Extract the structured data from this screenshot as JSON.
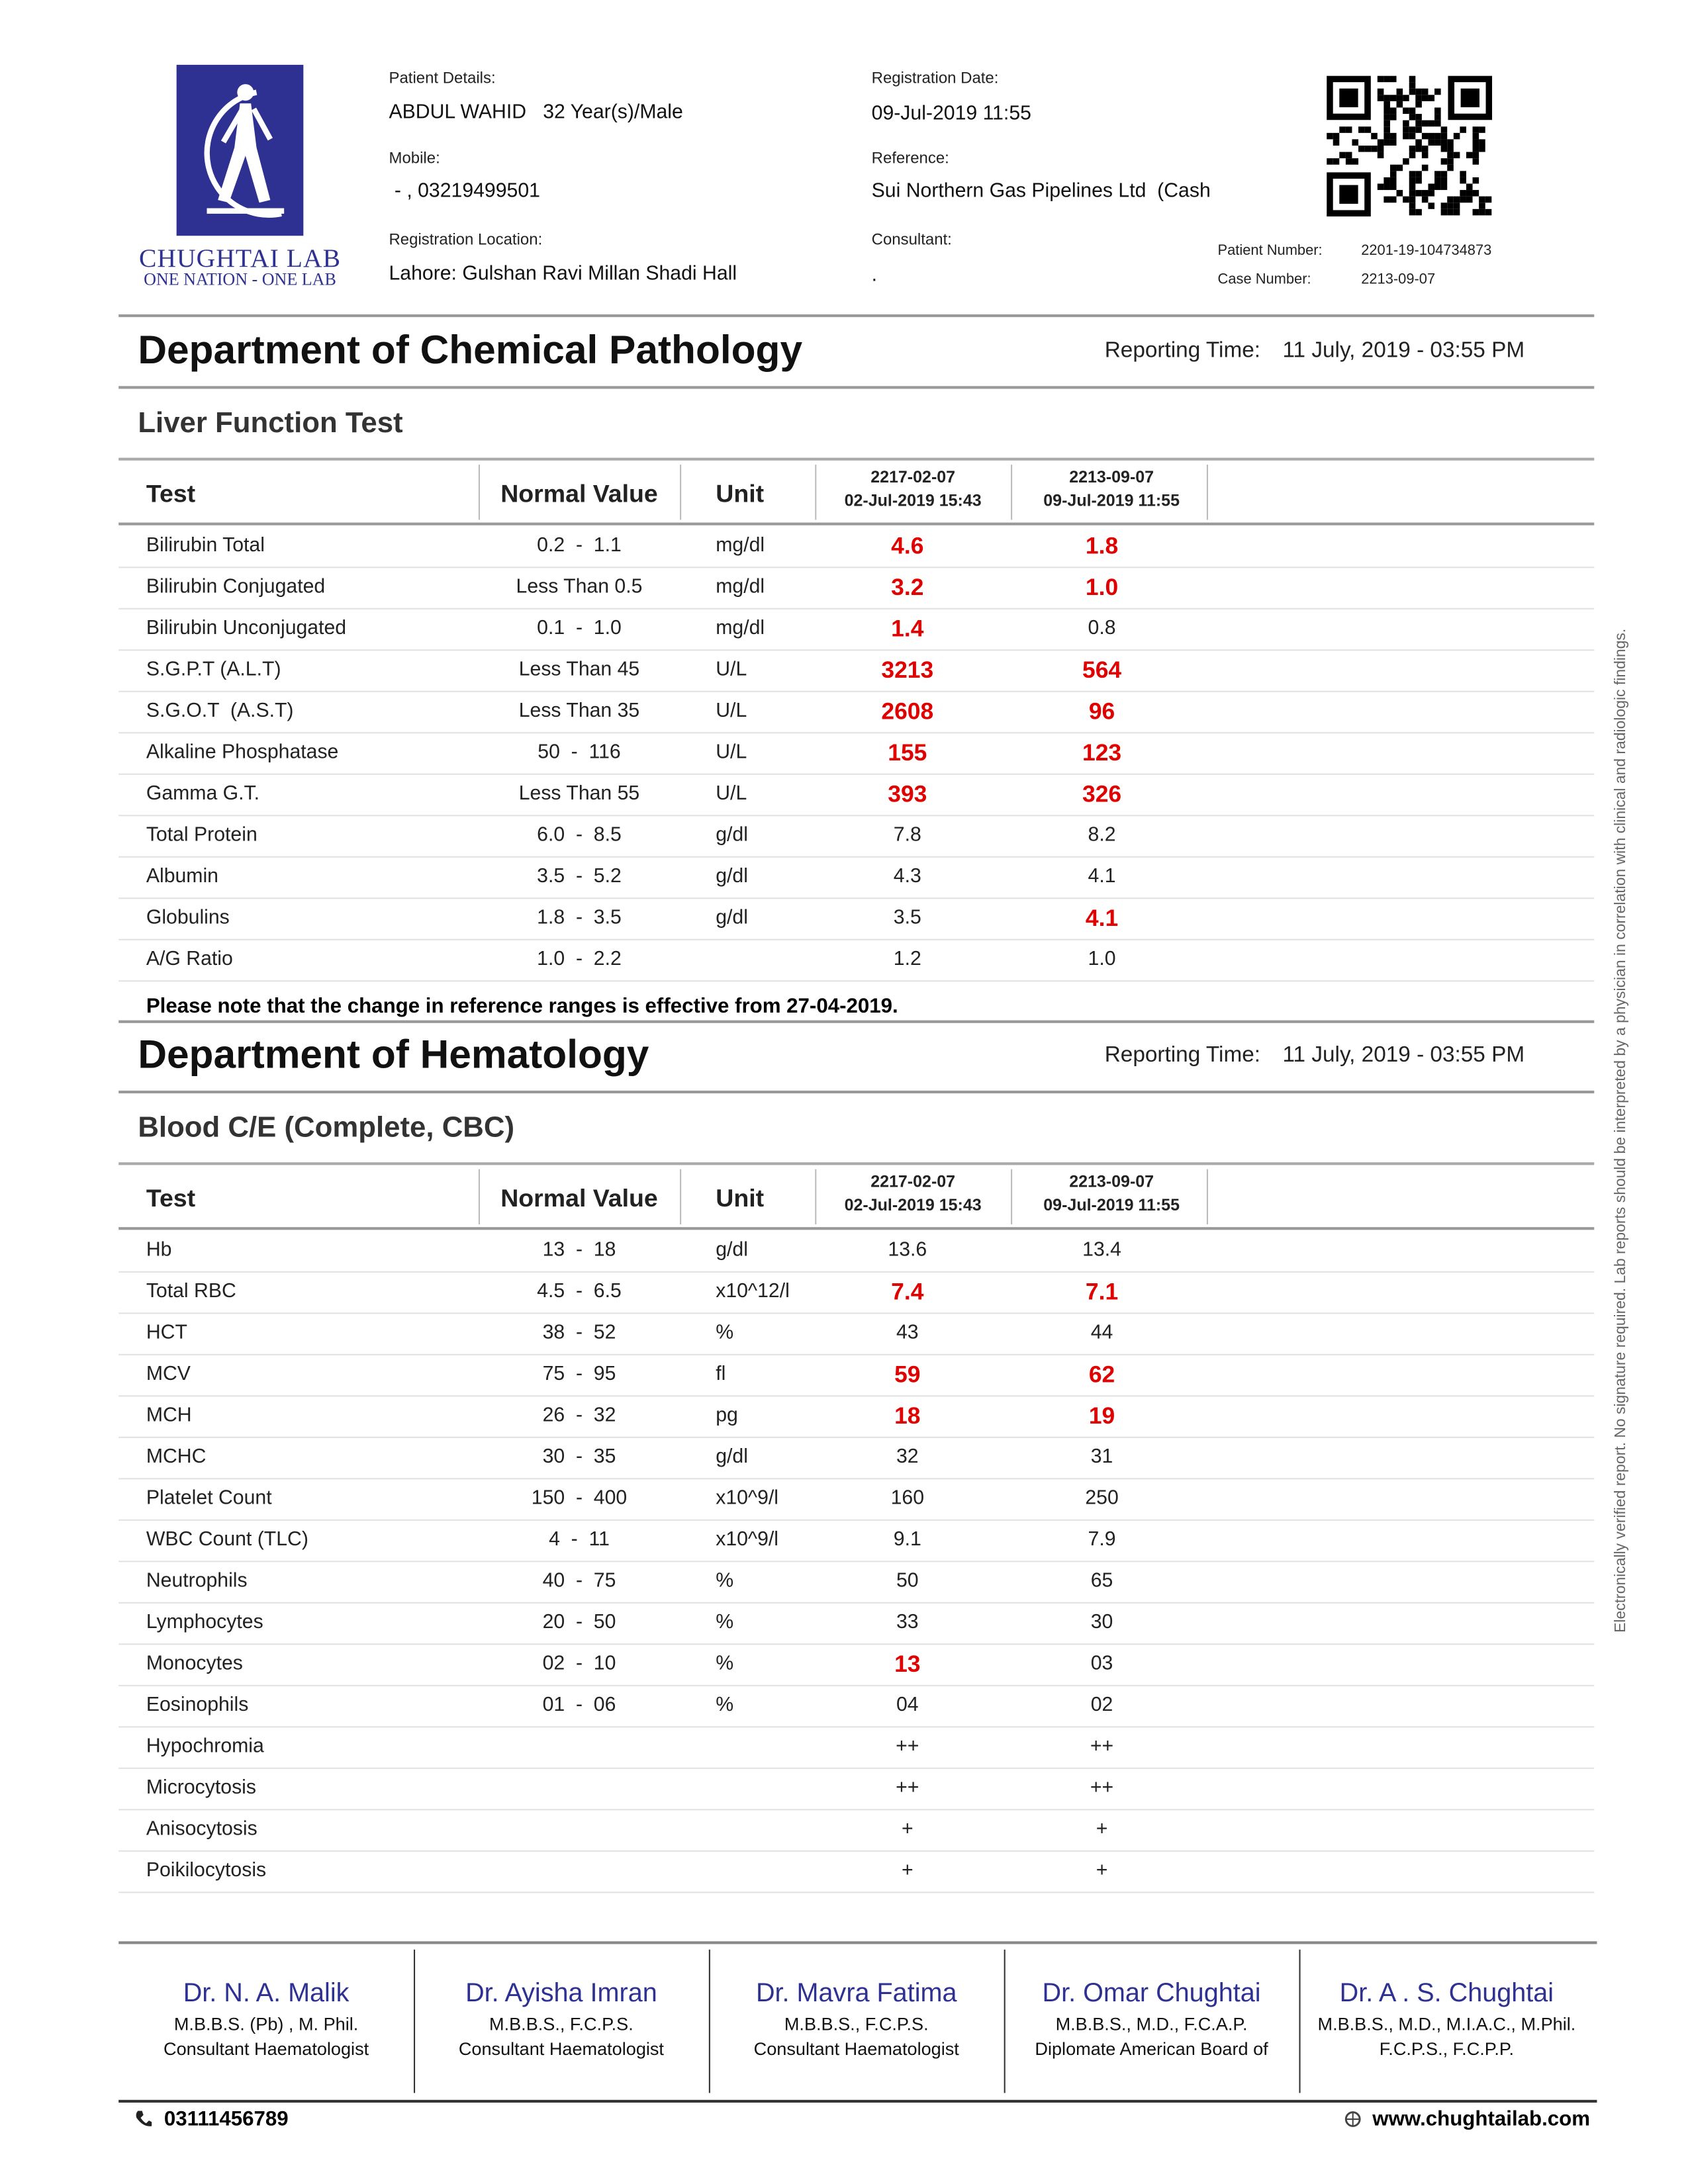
{
  "header": {
    "logo_title": "CHUGHTAI LAB",
    "logo_tagline": "ONE NATION - ONE LAB",
    "patient_label": "Patient Details:",
    "patient_value": "ABDUL WAHID   32 Year(s)/Male",
    "mobile_label": "Mobile:",
    "mobile_value": " - , 03219499501",
    "location_label": "Registration Location:",
    "location_value": "Lahore: Gulshan Ravi Millan Shadi Hall",
    "reg_date_label": "Registration Date:",
    "reg_date_value": "09-Jul-2019 11:55",
    "reference_label": "Reference:",
    "reference_value": "Sui Northern Gas Pipelines Ltd  (Cash",
    "consultant_label": "Consultant:",
    "consultant_value": ".",
    "patient_number_label": "Patient Number:",
    "patient_number_value": "2201-19-104734873",
    "case_number_label": "Case Number:",
    "case_number_value": "2213-09-07"
  },
  "sections": [
    {
      "department": "Department of Chemical Pathology",
      "reporting_label": "Reporting Time:",
      "reporting_time": "11 July, 2019 - 03:55 PM",
      "test_group": "Liver Function Test",
      "columns": [
        "Test",
        "Normal Value",
        "Unit"
      ],
      "result_columns": [
        {
          "id": "2217-02-07",
          "date": "02-Jul-2019 15:43"
        },
        {
          "id": "2213-09-07",
          "date": "09-Jul-2019 11:55"
        }
      ],
      "rows": [
        {
          "test": "Bilirubin Total",
          "normal": "0.2  -  1.1",
          "unit": "mg/dl",
          "results": [
            "4.6",
            "1.8"
          ],
          "red": [
            true,
            true
          ]
        },
        {
          "test": "Bilirubin Conjugated",
          "normal": "Less Than 0.5",
          "unit": "mg/dl",
          "results": [
            "3.2",
            "1.0"
          ],
          "red": [
            true,
            true
          ]
        },
        {
          "test": "Bilirubin Unconjugated",
          "normal": "0.1  -  1.0",
          "unit": "mg/dl",
          "results": [
            "1.4",
            "0.8"
          ],
          "red": [
            true,
            false
          ]
        },
        {
          "test": "S.G.P.T (A.L.T)",
          "normal": "Less Than 45",
          "unit": "U/L",
          "results": [
            "3213",
            "564"
          ],
          "red": [
            true,
            true
          ]
        },
        {
          "test": "S.G.O.T  (A.S.T)",
          "normal": "Less Than 35",
          "unit": "U/L",
          "results": [
            "2608",
            "96"
          ],
          "red": [
            true,
            true
          ]
        },
        {
          "test": "Alkaline Phosphatase",
          "normal": "50  -  116",
          "unit": "U/L",
          "results": [
            "155",
            "123"
          ],
          "red": [
            true,
            true
          ]
        },
        {
          "test": "Gamma G.T.",
          "normal": "Less Than 55",
          "unit": "U/L",
          "results": [
            "393",
            "326"
          ],
          "red": [
            true,
            true
          ]
        },
        {
          "test": "Total Protein",
          "normal": "6.0  -  8.5",
          "unit": "g/dl",
          "results": [
            "7.8",
            "8.2"
          ],
          "red": [
            false,
            false
          ]
        },
        {
          "test": "Albumin",
          "normal": "3.5  -  5.2",
          "unit": "g/dl",
          "results": [
            "4.3",
            "4.1"
          ],
          "red": [
            false,
            false
          ]
        },
        {
          "test": "Globulins",
          "normal": "1.8  -  3.5",
          "unit": "g/dl",
          "results": [
            "3.5",
            "4.1"
          ],
          "red": [
            false,
            true
          ]
        },
        {
          "test": "A/G Ratio",
          "normal": "1.0  -  2.2",
          "results": [
            "1.2",
            "1.0"
          ],
          "red": [
            false,
            false
          ]
        }
      ],
      "note": "Please note that the change in reference ranges is effective from 27-04-2019."
    },
    {
      "department": "Department of Hematology",
      "reporting_label": "Reporting Time:",
      "reporting_time": "11 July, 2019 - 03:55 PM",
      "test_group": "Blood C/E (Complete, CBC)",
      "columns": [
        "Test",
        "Normal Value",
        "Unit"
      ],
      "result_columns": [
        {
          "id": "2217-02-07",
          "date": "02-Jul-2019 15:43"
        },
        {
          "id": "2213-09-07",
          "date": "09-Jul-2019 11:55"
        }
      ],
      "rows": [
        {
          "test": "Hb",
          "normal": "13  -  18",
          "unit": "g/dl",
          "results": [
            "13.6",
            "13.4"
          ],
          "red": [
            false,
            false
          ]
        },
        {
          "test": "Total RBC",
          "normal": "4.5  -  6.5",
          "unit": "x10^12/l",
          "results": [
            "7.4",
            "7.1"
          ],
          "red": [
            true,
            true
          ]
        },
        {
          "test": "HCT",
          "normal": "38  -  52",
          "unit": "%",
          "results": [
            "43",
            "44"
          ],
          "red": [
            false,
            false
          ]
        },
        {
          "test": "MCV",
          "normal": "75  -  95",
          "unit": "fl",
          "results": [
            "59",
            "62"
          ],
          "red": [
            true,
            true
          ]
        },
        {
          "test": "MCH",
          "normal": "26  -  32",
          "unit": "pg",
          "results": [
            "18",
            "19"
          ],
          "red": [
            true,
            true
          ]
        },
        {
          "test": "MCHC",
          "normal": "30  -  35",
          "unit": "g/dl",
          "results": [
            "32",
            "31"
          ],
          "red": [
            false,
            false
          ]
        },
        {
          "test": "Platelet Count",
          "normal": "150  -  400",
          "unit": "x10^9/l",
          "results": [
            "160",
            "250"
          ],
          "red": [
            false,
            false
          ]
        },
        {
          "test": "WBC Count (TLC)",
          "normal": "4  -  11",
          "unit": "x10^9/l",
          "results": [
            "9.1",
            "7.9"
          ],
          "red": [
            false,
            false
          ]
        },
        {
          "test": "Neutrophils",
          "normal": "40  -  75",
          "unit": "%",
          "results": [
            "50",
            "65"
          ],
          "red": [
            false,
            false
          ]
        },
        {
          "test": "Lymphocytes",
          "normal": "20  -  50",
          "unit": "%",
          "results": [
            "33",
            "30"
          ],
          "red": [
            false,
            false
          ]
        },
        {
          "test": "Monocytes",
          "normal": "02  -  10",
          "unit": "%",
          "results": [
            "13",
            "03"
          ],
          "red": [
            true,
            false
          ]
        },
        {
          "test": "Eosinophils",
          "normal": "01  -  06",
          "unit": "%",
          "results": [
            "04",
            "02"
          ],
          "red": [
            false,
            false
          ]
        },
        {
          "test": "Hypochromia",
          "results": [
            "++",
            "++"
          ],
          "red": [
            false,
            false
          ]
        },
        {
          "test": "Microcytosis",
          "results": [
            "++",
            "++"
          ],
          "red": [
            false,
            false
          ]
        },
        {
          "test": "Anisocytosis",
          "results": [
            "+",
            "+"
          ],
          "red": [
            false,
            false
          ]
        },
        {
          "test": "Poikilocytosis",
          "results": [
            "+",
            "+"
          ],
          "red": [
            false,
            false
          ]
        }
      ]
    }
  ],
  "doctors": [
    {
      "name": "Dr. N. A. Malik",
      "degree": "M.B.B.S. (Pb) , M. Phil.",
      "title": "Consultant Haematologist"
    },
    {
      "name": "Dr. Ayisha Imran",
      "degree": "M.B.B.S., F.C.P.S.",
      "title": "Consultant Haematologist"
    },
    {
      "name": "Dr. Mavra Fatima",
      "degree": "M.B.B.S., F.C.P.S.",
      "title": "Consultant Haematologist"
    },
    {
      "name": "Dr. Omar Chughtai",
      "degree": "M.B.B.S., M.D., F.C.A.P.",
      "title": "Diplomate American Board of"
    },
    {
      "name": "Dr. A . S. Chughtai",
      "degree": "M.B.B.S., M.D., M.I.A.C., M.Phil.",
      "title": "F.C.P.S., F.C.P.P."
    }
  ],
  "footer": {
    "phone": "03111456789",
    "website": "www.chughtailab.com"
  },
  "side_note": "Electronically verified report. No signature required. Lab reports should be interpreted by a physician in correlation with clinical and radiologic findings."
}
